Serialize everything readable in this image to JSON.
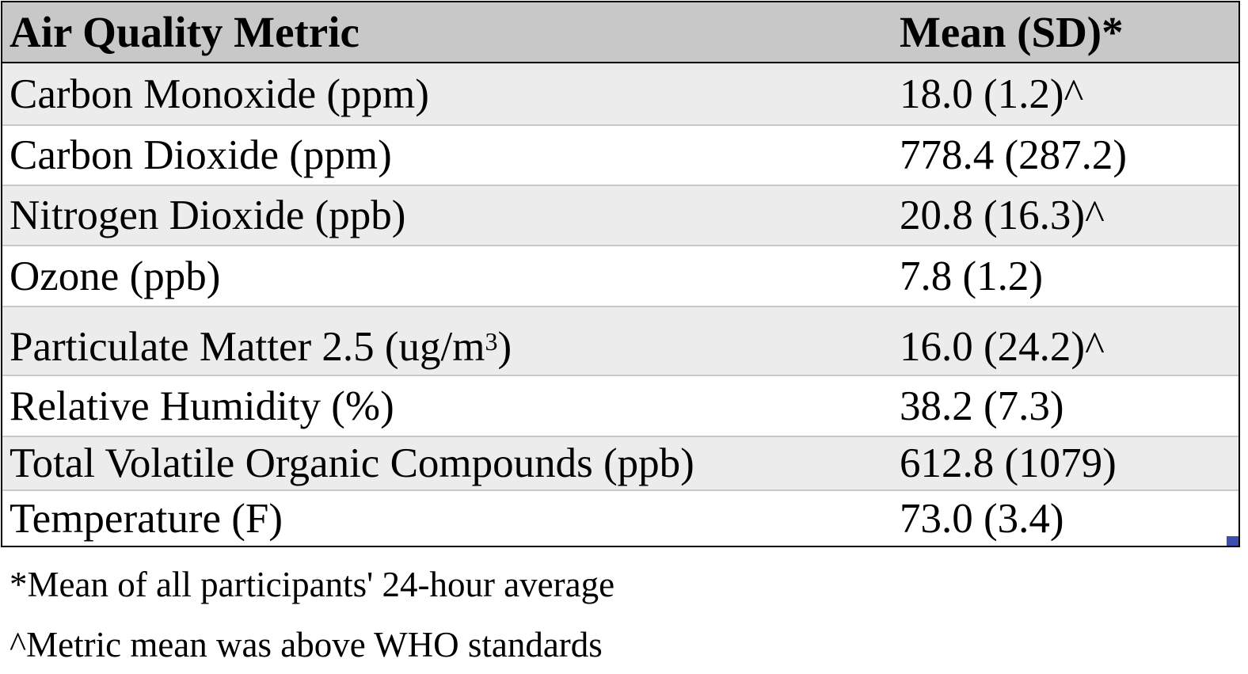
{
  "table": {
    "header": {
      "metric": "Air Quality Metric",
      "value": "Mean (SD)*"
    },
    "rows": [
      {
        "metric": "Carbon Monoxide (ppm)",
        "value": "18.0 (1.2)^"
      },
      {
        "metric": "Carbon Dioxide (ppm)",
        "value": "778.4 (287.2)"
      },
      {
        "metric": "Nitrogen Dioxide (ppb)",
        "value": "20.8 (16.3)^"
      },
      {
        "metric": "Ozone (ppb)",
        "value": "7.8 (1.2)"
      },
      {
        "metric": "Particulate Matter 2.5 (ug/m",
        "metric_superscript": "3",
        "metric_suffix": ")",
        "value": "16.0 (24.2)^"
      },
      {
        "metric": "Relative Humidity (%)",
        "value": "38.2 (7.3)"
      },
      {
        "metric": "Total Volatile Organic Compounds (ppb)",
        "value": "612.8 (1079)"
      },
      {
        "metric": "Temperature (F)",
        "value": "73.0 (3.4)"
      }
    ]
  },
  "footnotes": {
    "mean_note": "*Mean of all participants' 24-hour average",
    "who_note": "^Metric mean was above WHO standards"
  },
  "colors": {
    "header_bg": "#c8c8c8",
    "shaded_row_bg": "#ececec",
    "border": "#000000"
  }
}
